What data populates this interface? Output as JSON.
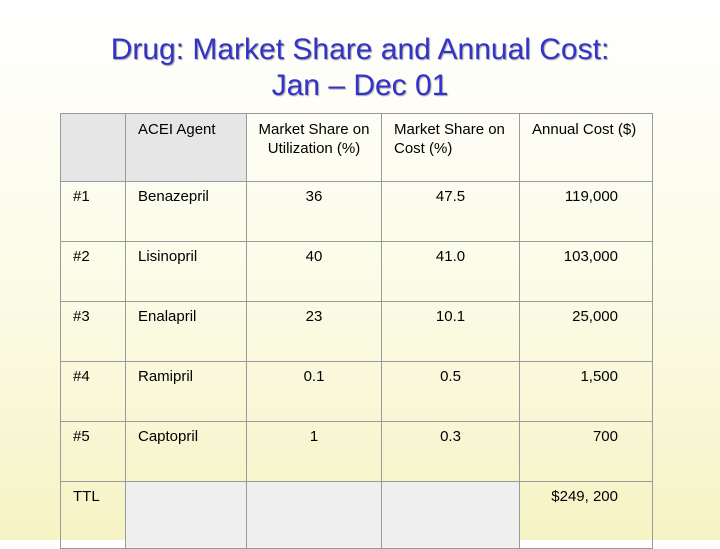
{
  "title": {
    "line1": "Drug: Market Share and Annual Cost:",
    "line2": "Jan – Dec 01"
  },
  "table": {
    "headers": {
      "agent": "ACEI Agent",
      "util": "Market Share on Utilization (%)",
      "cost_share": "Market Share on Cost (%)",
      "annual": "Annual Cost ($)"
    },
    "rows": [
      {
        "rank": "#1",
        "drug": "Benazepril",
        "util": "36",
        "cost_share": "47.5",
        "annual": "119,000"
      },
      {
        "rank": "#2",
        "drug": "Lisinopril",
        "util": "40",
        "cost_share": "41.0",
        "annual": "103,000"
      },
      {
        "rank": "#3",
        "drug": "Enalapril",
        "util": "23",
        "cost_share": "10.1",
        "annual": "25,000"
      },
      {
        "rank": "#4",
        "drug": "Ramipril",
        "util": "0.1",
        "cost_share": "0.5",
        "annual": "1,500"
      },
      {
        "rank": "#5",
        "drug": "Captopril",
        "util": "1",
        "cost_share": "0.3",
        "annual": "700"
      }
    ],
    "total": {
      "label": "TTL",
      "annual": "$249, 200"
    }
  }
}
